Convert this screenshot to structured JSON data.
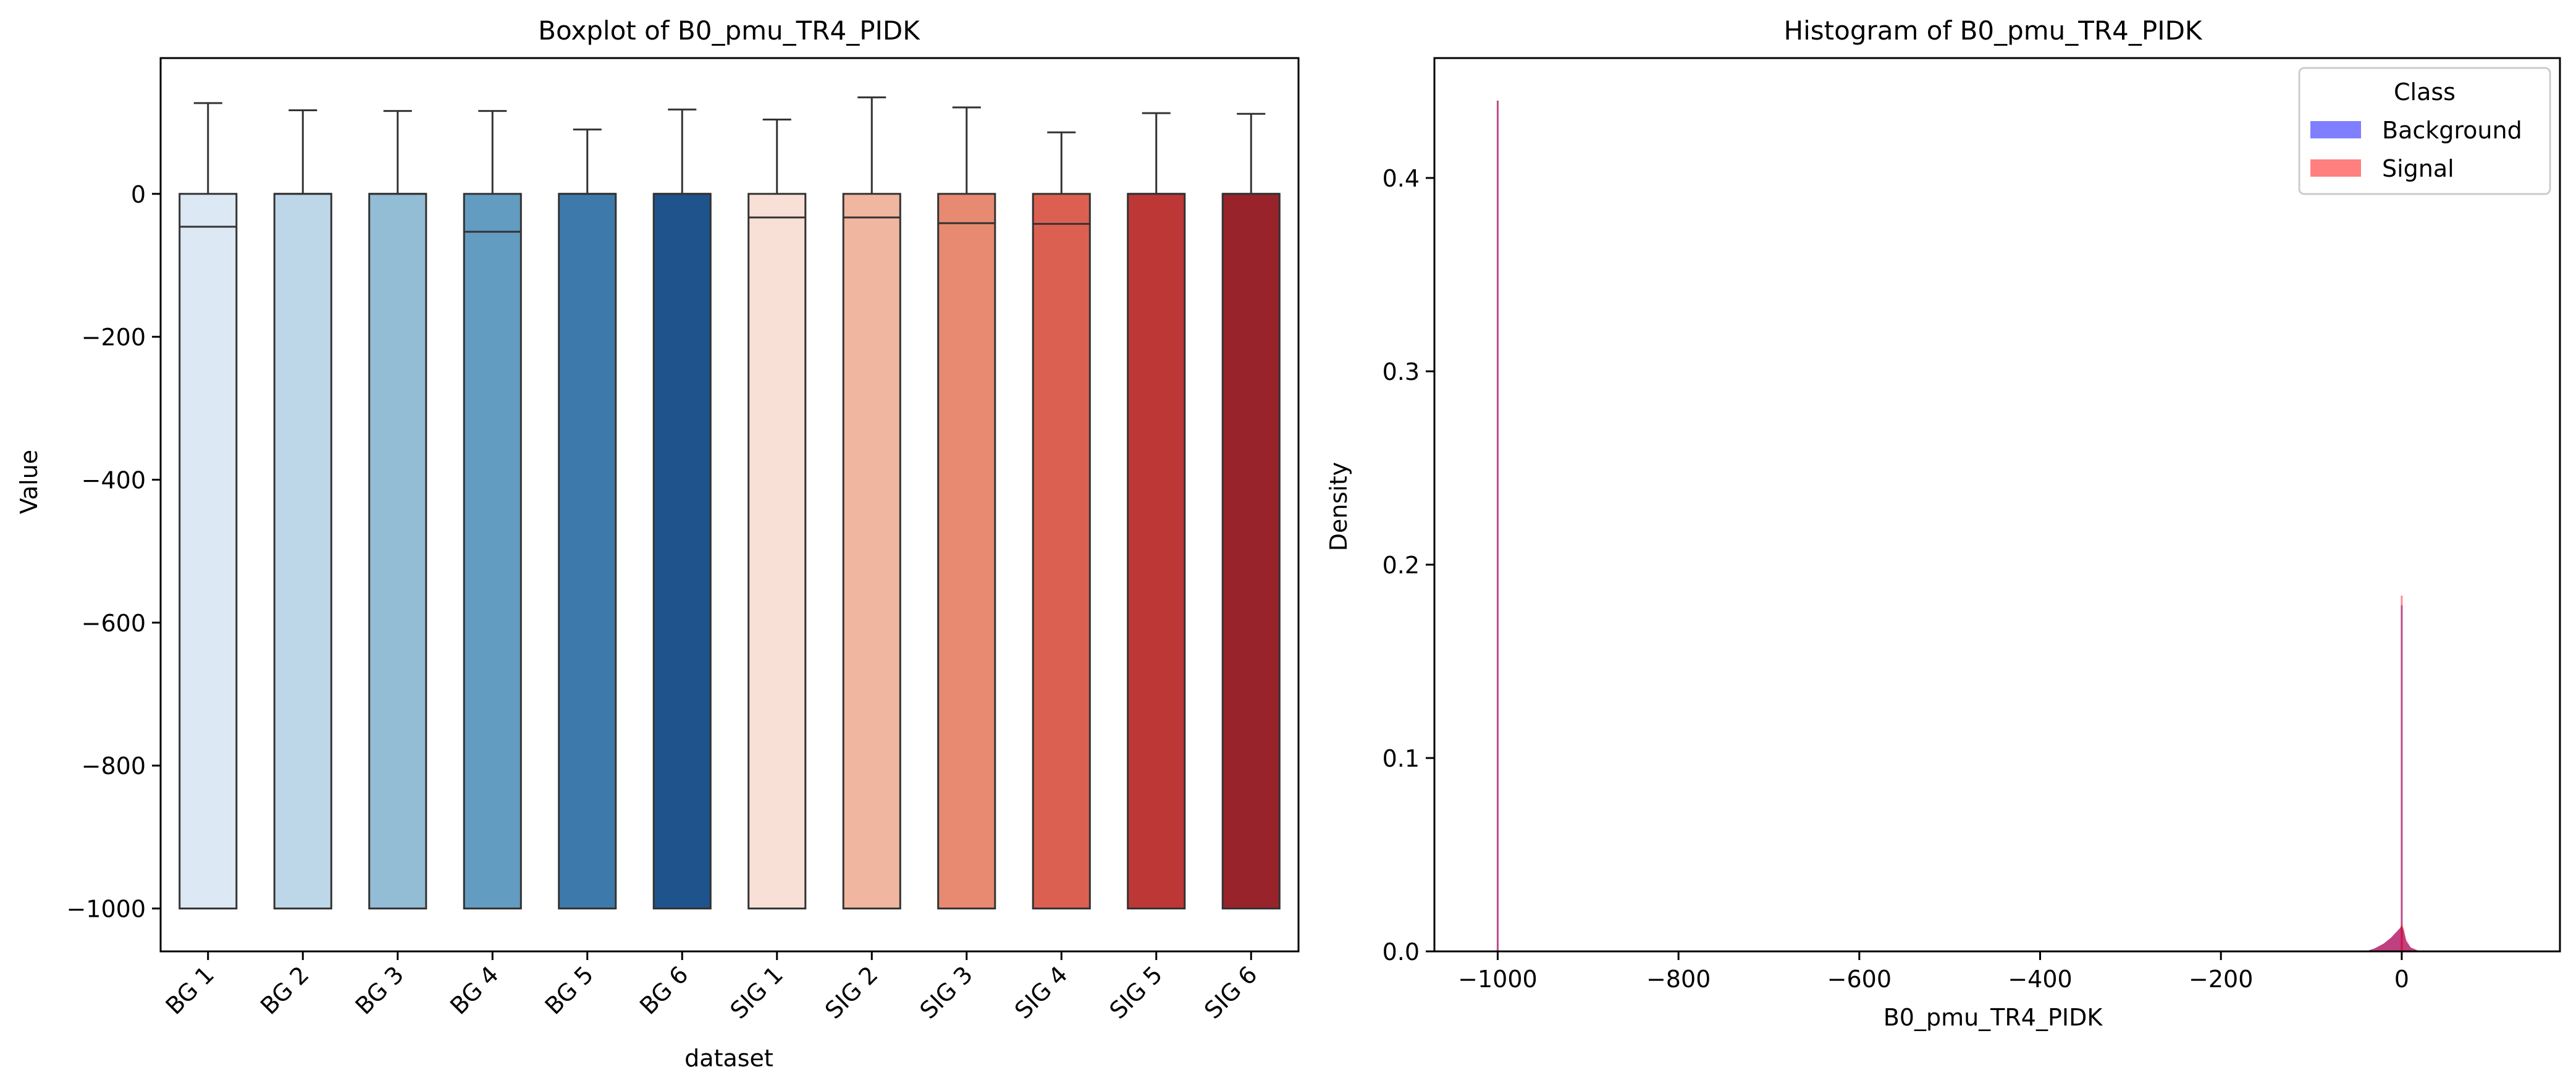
{
  "chart_data": [
    {
      "type": "boxplot",
      "title": "Boxplot of B0_pmu_TR4_PIDK",
      "xlabel": "dataset",
      "ylabel": "Value",
      "ylim": [
        -1060,
        190
      ],
      "yticks": [
        0,
        -200,
        -400,
        -600,
        -800,
        -1000
      ],
      "categories": [
        "BG 1",
        "BG 2",
        "BG 3",
        "BG 4",
        "BG 5",
        "BG 6",
        "SIG 1",
        "SIG 2",
        "SIG 3",
        "SIG 4",
        "SIG 5",
        "SIG 6"
      ],
      "boxes": [
        {
          "whislo": -1000,
          "q1": -1000,
          "med": -46,
          "q3": 0,
          "whishi": 127,
          "color": "#dce8f3"
        },
        {
          "whislo": -1000,
          "q1": -1000,
          "med": 0,
          "q3": 0,
          "whishi": 117,
          "color": "#bed7e8"
        },
        {
          "whislo": -1000,
          "q1": -1000,
          "med": 0,
          "q3": 0,
          "whishi": 116,
          "color": "#93bcd5"
        },
        {
          "whislo": -1000,
          "q1": -1000,
          "med": -53,
          "q3": 0,
          "whishi": 116,
          "color": "#629cc1"
        },
        {
          "whislo": -1000,
          "q1": -1000,
          "med": 0,
          "q3": 0,
          "whishi": 90,
          "color": "#3d7aab"
        },
        {
          "whislo": -1000,
          "q1": -1000,
          "med": 0,
          "q3": 0,
          "whishi": 118,
          "color": "#1f538b"
        },
        {
          "whislo": -1000,
          "q1": -1000,
          "med": -33,
          "q3": 0,
          "whishi": 104,
          "color": "#f8e0d7"
        },
        {
          "whislo": -1000,
          "q1": -1000,
          "med": -33,
          "q3": 0,
          "whishi": 135,
          "color": "#f1b6a0"
        },
        {
          "whislo": -1000,
          "q1": -1000,
          "med": -41,
          "q3": 0,
          "whishi": 121,
          "color": "#e78a71"
        },
        {
          "whislo": -1000,
          "q1": -1000,
          "med": -42,
          "q3": 0,
          "whishi": 86,
          "color": "#dc6051"
        },
        {
          "whislo": -1000,
          "q1": -1000,
          "med": 0,
          "q3": 0,
          "whishi": 113,
          "color": "#bd3737"
        },
        {
          "whislo": -1000,
          "q1": -1000,
          "med": 0,
          "q3": 0,
          "whishi": 112,
          "color": "#99232a"
        }
      ]
    },
    {
      "type": "histogram",
      "title": "Histogram of B0_pmu_TR4_PIDK",
      "xlabel": "B0_pmu_TR4_PIDK",
      "ylabel": "Density",
      "xlim": [
        -1070,
        175
      ],
      "ylim": [
        0,
        0.462
      ],
      "xticks": [
        -1000,
        -800,
        -600,
        -400,
        -200,
        0
      ],
      "yticks": [
        0.0,
        0.1,
        0.2,
        0.3,
        0.4
      ],
      "legend": {
        "title": "Class",
        "location": "upper right",
        "entries": [
          {
            "label": "Background",
            "color": "#7f7fff"
          },
          {
            "label": "Signal",
            "color": "#ff7f7f"
          }
        ]
      },
      "series": [
        {
          "name": "Background",
          "color": "#0000ff",
          "spikes": [
            {
              "x": -1000,
              "y": 0.44
            },
            {
              "x": 0,
              "y": 0.179
            }
          ],
          "bump": [
            [
              -40,
              0
            ],
            [
              -30,
              0.0015
            ],
            [
              -20,
              0.004
            ],
            [
              -12,
              0.007
            ],
            [
              -6,
              0.01
            ],
            [
              -2,
              0.012
            ],
            [
              0,
              0.013
            ],
            [
              2,
              0.011
            ],
            [
              5,
              0.005
            ],
            [
              10,
              0.002
            ],
            [
              20,
              0
            ]
          ]
        },
        {
          "name": "Signal",
          "color": "#ff0000",
          "spikes": [
            {
              "x": -1000,
              "y": 0.44
            },
            {
              "x": 0,
              "y": 0.184
            }
          ],
          "bump": [
            [
              -40,
              0
            ],
            [
              -30,
              0.0015
            ],
            [
              -20,
              0.004
            ],
            [
              -12,
              0.007
            ],
            [
              -6,
              0.01
            ],
            [
              -2,
              0.012
            ],
            [
              0,
              0.014
            ],
            [
              2,
              0.012
            ],
            [
              5,
              0.006
            ],
            [
              10,
              0.002
            ],
            [
              20,
              0
            ]
          ]
        }
      ]
    }
  ]
}
